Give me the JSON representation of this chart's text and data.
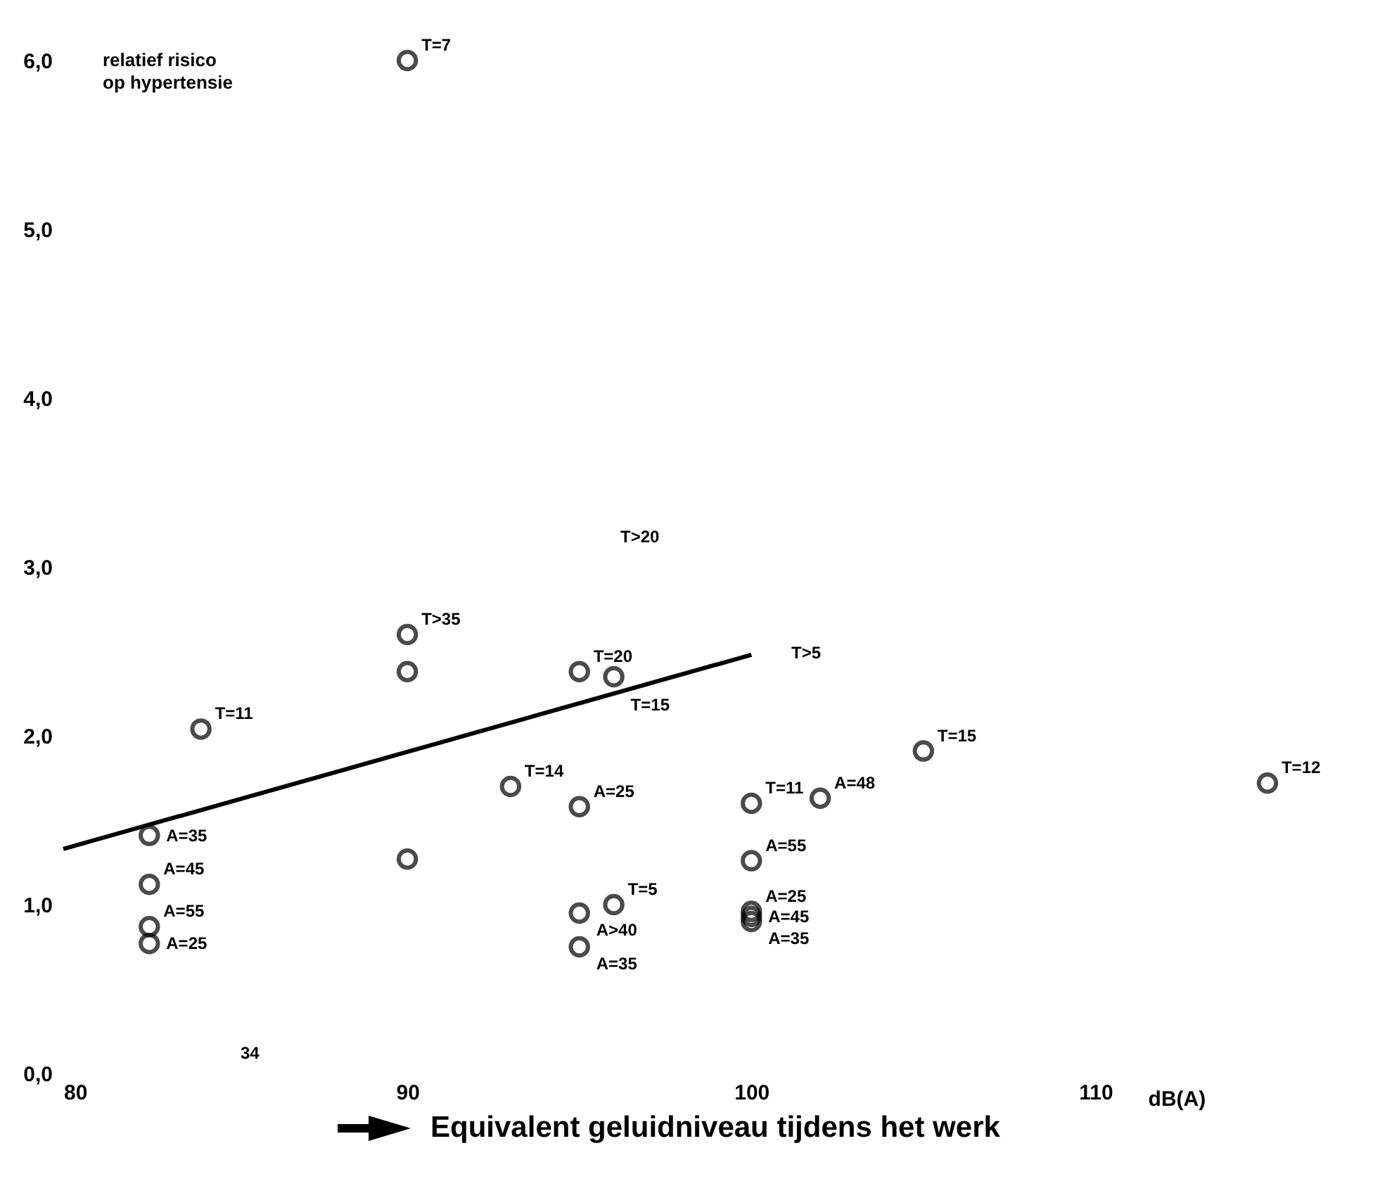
{
  "chart_data": {
    "type": "scatter",
    "ylabel": "relatief risico\nop hypertensie",
    "xlabel": "Equivalent geluidniveau tijdens het werk",
    "xlim": [
      80,
      116.8
    ],
    "xticks": [
      80,
      90,
      100,
      110
    ],
    "ylim": [
      0,
      6
    ],
    "yticks": [
      {
        "value": 0,
        "label": "0,0"
      },
      {
        "value": 1,
        "label": "1,0"
      },
      {
        "value": 2,
        "label": "2,0"
      },
      {
        "value": 3,
        "label": "3,0"
      },
      {
        "value": 4,
        "label": "4,0"
      },
      {
        "value": 5,
        "label": "5,0"
      },
      {
        "value": 6,
        "label": "6,0"
      }
    ],
    "grid": false,
    "marker": "circle",
    "series": [
      {
        "color": "#000000",
        "x": [
          90,
          84,
          82.5,
          82.5,
          82.5,
          82.5,
          90,
          90,
          90,
          93,
          95,
          96,
          95,
          95,
          96,
          95,
          100,
          100,
          100,
          100,
          100,
          102,
          105,
          115
        ],
        "values": [
          6.0,
          2.04,
          1.41,
          1.12,
          0.87,
          0.77,
          2.6,
          2.38,
          1.27,
          1.7,
          2.38,
          2.35,
          1.58,
          0.95,
          1.0,
          0.75,
          1.6,
          1.26,
          0.96,
          0.93,
          0.9,
          1.63,
          1.91,
          1.72
        ]
      },
      {
        "type": "line",
        "color": "#000000",
        "line_style": "solid",
        "marker": "none",
        "x": [
          80,
          100
        ],
        "values": [
          1.33,
          2.48
        ]
      }
    ],
    "annotations": [
      {
        "text": "T=7",
        "x": 90,
        "y": 6.0
      },
      {
        "text": "T=11",
        "x": 84,
        "y": 2.04
      },
      {
        "text": "A=35",
        "x": 82.5,
        "y": 1.41
      },
      {
        "text": "A=45",
        "x": 82.5,
        "y": 1.12
      },
      {
        "text": "A=55",
        "x": 82.5,
        "y": 0.87
      },
      {
        "text": "A=25",
        "x": 82.5,
        "y": 0.77
      },
      {
        "text": "T>35",
        "x": 90,
        "y": 2.6
      },
      {
        "text": "T=14",
        "x": 93,
        "y": 1.7
      },
      {
        "text": "T=20",
        "x": 95,
        "y": 2.38
      },
      {
        "text": "T=15",
        "x": 96,
        "y": 2.35
      },
      {
        "text": "A=25",
        "x": 95,
        "y": 1.58
      },
      {
        "text": "A>40",
        "x": 95,
        "y": 0.95
      },
      {
        "text": "T=5",
        "x": 96,
        "y": 1.0
      },
      {
        "text": "A=35",
        "x": 95,
        "y": 0.75
      },
      {
        "text": "T=11",
        "x": 100,
        "y": 1.6
      },
      {
        "text": "A=55",
        "x": 100,
        "y": 1.26
      },
      {
        "text": "A=25",
        "x": 100,
        "y": 0.96
      },
      {
        "text": "A=45",
        "x": 100,
        "y": 0.93
      },
      {
        "text": "A=35",
        "x": 100,
        "y": 0.9
      },
      {
        "text": "A=48",
        "x": 102,
        "y": 1.63
      },
      {
        "text": "T=15",
        "x": 105,
        "y": 1.91
      },
      {
        "text": "T=12",
        "x": 115,
        "y": 1.72
      },
      "T>20",
      "T>5",
      "34",
      "dB(A)"
    ]
  }
}
